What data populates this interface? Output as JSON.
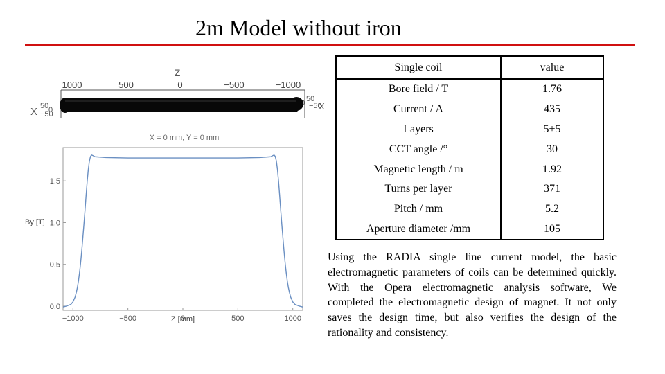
{
  "slide": {
    "title": "2m Model without iron",
    "accent_color": "#d01010",
    "description": "Using the RADIA single line current model, the basic electromagnetic parameters of coils can be determined quickly. With the Opera electromagnetic analysis software, We completed the electromagnetic design of magnet. It not only saves the design time, but also verifies the design of the rationality and consistency."
  },
  "coil_view": {
    "axis_label": "Z",
    "ticks": [
      "1000",
      "500",
      "0",
      "−500",
      "−1000"
    ],
    "left_label": "X",
    "left_ticks": [
      "50",
      "0",
      "−50"
    ],
    "right_ticks": [
      "50",
      "0",
      "−50"
    ],
    "right_label": "X"
  },
  "table": {
    "header": [
      "Single coil",
      "value"
    ],
    "rows": [
      [
        "Bore field / T",
        "1.76"
      ],
      [
        "Current / A",
        "435"
      ],
      [
        "Layers",
        "5+5"
      ],
      [
        "CCT angle /°",
        "30"
      ],
      [
        "Magnetic length / m",
        "1.92"
      ],
      [
        "Turns per layer",
        "371"
      ],
      [
        "Pitch / mm",
        "5.2"
      ],
      [
        "Aperture diameter /mm",
        "105"
      ]
    ]
  },
  "chart_data": {
    "type": "line",
    "title": "X = 0 mm, Y = 0 mm",
    "xlabel": "Z [mm]",
    "ylabel": "By [T]",
    "xlim": [
      -1090,
      1090
    ],
    "ylim": [
      -0.05,
      1.9
    ],
    "xticks": [
      -1000,
      -500,
      0,
      500,
      1000
    ],
    "yticks": [
      0.0,
      0.5,
      1.0,
      1.5
    ],
    "x_tick_labels": [
      "−1000",
      "−500",
      "0",
      "500",
      "1000"
    ],
    "y_tick_labels": [
      "0.0",
      "0.5",
      "1.0",
      "1.5"
    ],
    "line_color": "#6a8fc2",
    "grid": false,
    "series": [
      {
        "x": [
          -1090,
          -1060,
          -1040,
          -1020,
          -1000,
          -990,
          -980,
          -970,
          -960,
          -950,
          -940,
          -930,
          -920,
          -910,
          -900,
          -890,
          -880,
          -870,
          -860,
          -850,
          -840,
          -830,
          -820,
          -800,
          -700,
          -500,
          -250,
          0,
          250,
          500,
          700,
          800,
          820,
          830,
          840,
          850,
          860,
          870,
          880,
          890,
          900,
          910,
          920,
          930,
          940,
          950,
          960,
          970,
          980,
          990,
          1000,
          1020,
          1040,
          1060,
          1090
        ],
        "y": [
          -0.01,
          0.0,
          0.01,
          0.02,
          0.05,
          0.08,
          0.11,
          0.16,
          0.22,
          0.3,
          0.4,
          0.52,
          0.66,
          0.82,
          0.98,
          1.15,
          1.33,
          1.5,
          1.64,
          1.74,
          1.795,
          1.81,
          1.805,
          1.79,
          1.78,
          1.775,
          1.775,
          1.775,
          1.775,
          1.775,
          1.78,
          1.79,
          1.805,
          1.81,
          1.795,
          1.74,
          1.64,
          1.5,
          1.33,
          1.15,
          0.98,
          0.82,
          0.66,
          0.52,
          0.4,
          0.3,
          0.22,
          0.16,
          0.11,
          0.08,
          0.05,
          0.02,
          0.01,
          0.0,
          -0.01
        ]
      }
    ]
  }
}
